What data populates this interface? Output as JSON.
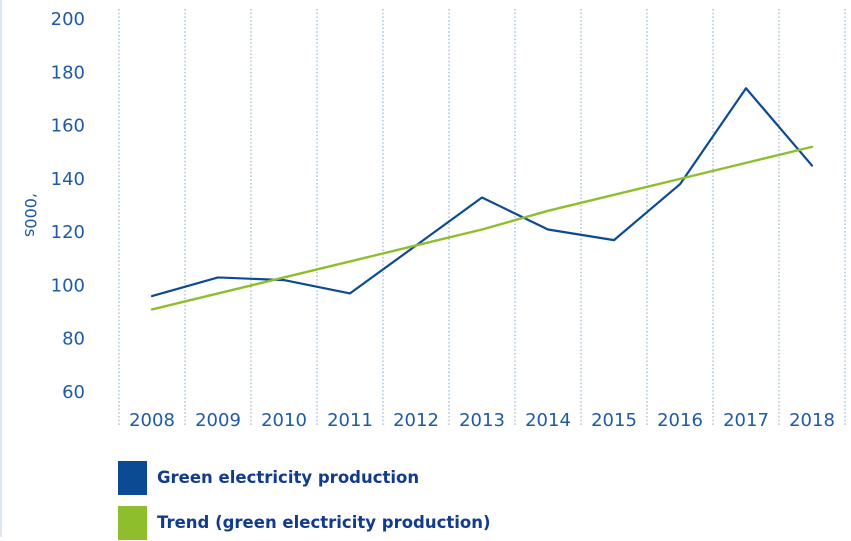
{
  "chart_data": {
    "type": "line",
    "title": "",
    "xlabel": "",
    "ylabel": "’000s",
    "categories": [
      "2008",
      "2009",
      "2010",
      "2011",
      "2012",
      "2013",
      "2014",
      "2015",
      "2016",
      "2017",
      "2018"
    ],
    "yticks": [
      "60",
      "80",
      "100",
      "120",
      "140",
      "160",
      "180",
      "200"
    ],
    "ylim": [
      60,
      200
    ],
    "grid": "vertical dotted separators between years",
    "legend_position": "bottom-left",
    "series": [
      {
        "name": "Green electricity production",
        "color": "#0d4a94",
        "values": [
          96,
          103,
          102,
          97,
          115,
          133,
          121,
          117,
          138,
          174,
          145
        ]
      },
      {
        "name": "Trend (green electricity production)",
        "color": "#8fbe2c",
        "values": [
          91,
          97,
          103,
          109,
          115,
          121,
          128,
          134,
          140,
          146,
          152
        ]
      }
    ]
  },
  "colors": {
    "axis_text": "#1f5aa7",
    "grid": "#7ea6c9",
    "legend_text": "#123b8c"
  }
}
